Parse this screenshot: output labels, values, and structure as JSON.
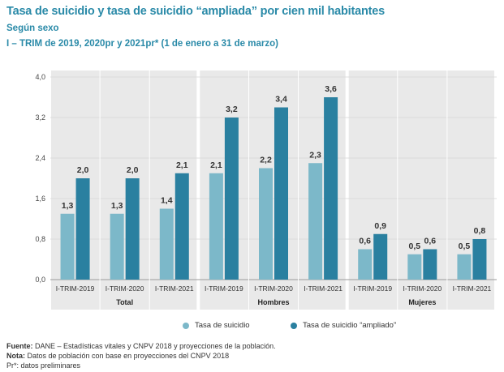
{
  "title": "Tasa de suicidio y tasa de suicidio “ampliada” por cien mil habitantes",
  "subtitle1": "Según sexo",
  "subtitle2": "I – TRIM de 2019, 2020pr y 2021pr* (1 de enero a 31 de marzo)",
  "colors": {
    "title": "#2a8aa8",
    "series1": "#7cb8c9",
    "series2": "#2a80a0",
    "panel": "#e9e9e9"
  },
  "chart_data": {
    "type": "bar",
    "ylim": [
      0,
      4.0
    ],
    "yticks": [
      "0,0",
      "0,8",
      "1,6",
      "2,4",
      "3,2",
      "4,0"
    ],
    "ytick_values": [
      0,
      0.8,
      1.6,
      2.4,
      3.2,
      4.0
    ],
    "groups": [
      {
        "label": "Total",
        "categories": [
          "I-TRIM-2019",
          "I-TRIM-2020",
          "I-TRIM-2021"
        ],
        "series1": [
          1.3,
          1.3,
          1.4
        ],
        "series1_labels": [
          "1,3",
          "1,3",
          "1,4"
        ],
        "series2": [
          2.0,
          2.0,
          2.1
        ],
        "series2_labels": [
          "2,0",
          "2,0",
          "2,1"
        ]
      },
      {
        "label": "Hombres",
        "categories": [
          "I-TRIM-2019",
          "I-TRIM-2020",
          "I-TRIM-2021"
        ],
        "series1": [
          2.1,
          2.2,
          2.3
        ],
        "series1_labels": [
          "2,1",
          "2,2",
          "2,3"
        ],
        "series2": [
          3.2,
          3.4,
          3.6
        ],
        "series2_labels": [
          "3,2",
          "3,4",
          "3,6"
        ]
      },
      {
        "label": "Mujeres",
        "categories": [
          "I-TRIM-2019",
          "I-TRIM-2020",
          "I-TRIM-2021"
        ],
        "series1": [
          0.6,
          0.5,
          0.5
        ],
        "series1_labels": [
          "0,6",
          "0,5",
          "0,5"
        ],
        "series2": [
          0.9,
          0.6,
          0.8
        ],
        "series2_labels": [
          "0,9",
          "0,6",
          "0,8"
        ]
      }
    ],
    "series_names": [
      "Tasa de suicidio",
      "Tasa de suicidio “ampliado”"
    ]
  },
  "footer": {
    "fuente_label": "Fuente:",
    "fuente_text": " DANE – Estadísticas vitales y CNPV 2018 y proyecciones de la población.",
    "nota_label": "Nota:",
    "nota_text": " Datos de población con base en proyecciones del CNPV 2018",
    "pr_text": "Pr*: datos preliminares"
  }
}
